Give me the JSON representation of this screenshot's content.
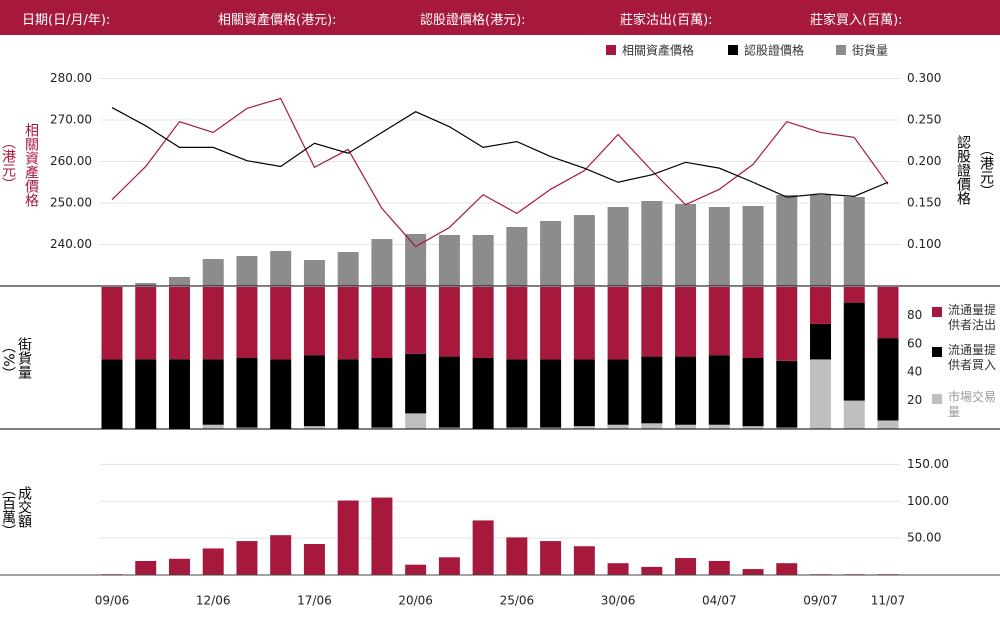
{
  "header": {
    "fields": [
      "日期(日/月/年):",
      "相關資產價格(港元):",
      "認股證價格(港元):",
      "莊家沽出(百萬):",
      "莊家買入(百萬):"
    ]
  },
  "chart_data": [
    {
      "type": "line",
      "y_title": "相關資產價格",
      "y_unit": "（港元）",
      "y2_title": "認股證價格",
      "y2_unit": "（港元）",
      "ylim": [
        230,
        290
      ],
      "yticks": [
        {
          "value": 240,
          "label": "240.00"
        },
        {
          "value": 250,
          "label": "250.00"
        },
        {
          "value": 260,
          "label": "260.00"
        },
        {
          "value": 270,
          "label": "270.00"
        },
        {
          "value": 280,
          "label": "280.00"
        }
      ],
      "y2lim": [
        0.05,
        0.35
      ],
      "y2ticks": [
        {
          "value": 0.1,
          "label": "0.100"
        },
        {
          "value": 0.15,
          "label": "0.150"
        },
        {
          "value": 0.2,
          "label": "0.200"
        },
        {
          "value": 0.25,
          "label": "0.250"
        },
        {
          "value": 0.3,
          "label": "0.300"
        }
      ],
      "grid": true,
      "legend": "top-right",
      "series": [
        {
          "name": "相關資產價格",
          "color": "#a6193c",
          "axis": "y",
          "values": [
            250.8,
            258.8,
            269.6,
            267.0,
            272.8,
            275.2,
            258.6,
            262.9,
            248.7,
            239.5,
            244.1,
            252.0,
            247.5,
            253.3,
            257.8,
            266.5,
            257.8,
            249.6,
            253.3,
            259.3,
            269.6,
            267.0,
            265.8,
            254.5
          ]
        },
        {
          "name": "認股證價格",
          "color": "#000000",
          "axis": "y2",
          "values": [
            0.265,
            0.243,
            0.217,
            0.217,
            0.201,
            0.194,
            0.222,
            0.21,
            0.235,
            0.26,
            0.242,
            0.217,
            0.224,
            0.206,
            0.192,
            0.175,
            0.184,
            0.199,
            0.192,
            0.175,
            0.157,
            0.161,
            0.158,
            0.175
          ]
        },
        {
          "name": "街貨量",
          "color": "#8c8c8c",
          "type": "bar",
          "values": [
            0,
            3,
            9,
            27,
            30,
            35,
            26,
            34,
            47,
            52,
            51,
            51,
            59,
            65,
            71,
            79,
            85,
            82,
            79,
            80,
            91,
            91,
            89,
            0
          ]
        }
      ]
    },
    {
      "type": "stacked_bar",
      "y_title": "街貨量",
      "y_unit": "（%）",
      "ylim": [
        0,
        100
      ],
      "yticks": [
        20,
        40,
        60,
        80
      ],
      "legend": "right",
      "series": [
        {
          "name": "市場交易量",
          "color": "#bfbfbf",
          "values": [
            0,
            0,
            0,
            3,
            1,
            0,
            2,
            0,
            1,
            11,
            1,
            0,
            1,
            1,
            2,
            3,
            4,
            3,
            3,
            2,
            1,
            49,
            20,
            6
          ]
        },
        {
          "name": "流通量提供者買入",
          "color": "#000000",
          "values": [
            49,
            49,
            49,
            46,
            49,
            49,
            50,
            49,
            49,
            42,
            50,
            50,
            48,
            48,
            47,
            46,
            47,
            48,
            49,
            48,
            47,
            25,
            69,
            58
          ]
        },
        {
          "name": "流通量提供者沽出",
          "color": "#a6193c",
          "values": [
            51,
            51,
            51,
            51,
            50,
            51,
            48,
            51,
            50,
            47,
            49,
            50,
            51,
            51,
            51,
            51,
            49,
            49,
            48,
            50,
            52,
            26,
            11,
            36
          ]
        }
      ]
    },
    {
      "type": "bar",
      "y_title": "成交額",
      "y_unit": "（百萬）",
      "color": "#a6193c",
      "ylim": [
        0,
        160
      ],
      "grid": true,
      "yticks": [
        {
          "value": 50,
          "label": "50.00"
        },
        {
          "value": 100,
          "label": "100.00"
        },
        {
          "value": 150,
          "label": "150.00"
        }
      ],
      "categories": [
        "09/06",
        null,
        null,
        "12/06",
        null,
        null,
        "17/06",
        null,
        null,
        "20/06",
        null,
        null,
        "25/06",
        null,
        null,
        "30/06",
        null,
        null,
        "04/07",
        null,
        null,
        "09/07",
        null,
        "11/07"
      ],
      "values": [
        1,
        19,
        22,
        36,
        46,
        54,
        42,
        101,
        105,
        14,
        24,
        74,
        51,
        46,
        39,
        16,
        11,
        23,
        19,
        8,
        16,
        1,
        1,
        1
      ]
    }
  ]
}
